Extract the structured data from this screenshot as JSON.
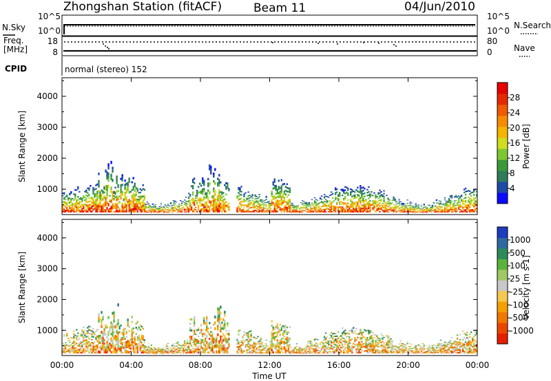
{
  "header": {
    "station": "Zhongshan Station (fitACF)",
    "beam": "Beam 11",
    "date": "04/Jun/2010"
  },
  "summary_panel": {
    "left_label": "N.Sky",
    "right_label": "N.Search",
    "left_ticks": [
      "10^5",
      "10^0"
    ],
    "right_ticks": [
      "10^5",
      "10^0"
    ]
  },
  "freq_panel": {
    "left_label_top": "Freq.",
    "left_label_unit": "[MHz]",
    "right_label": "Nave",
    "left_ticks": [
      "18",
      "8"
    ],
    "right_ticks": [
      "80",
      "0"
    ]
  },
  "cpid_panel": {
    "label": "CPID",
    "mode_text": "normal (stereo) 152"
  },
  "chart_data": [
    {
      "type": "heatmap",
      "name": "power",
      "ylabel": "Slant Range [km]",
      "ylim": [
        180,
        4600
      ],
      "yticks": [
        "1000",
        "2000",
        "3000",
        "4000"
      ],
      "colorbar": {
        "label": "Power [dB]",
        "ticks": [
          "4",
          "8",
          "12",
          "16",
          "20",
          "24",
          "28"
        ],
        "colors": [
          "#0a0aff",
          "#1f4aa8",
          "#2e7d5a",
          "#3a9a3a",
          "#7dc832",
          "#d2dc1e",
          "#f5b400",
          "#f58c00",
          "#f05a00",
          "#e62800",
          "#e60000"
        ]
      }
    },
    {
      "type": "heatmap",
      "name": "velocity",
      "ylabel": "Slant Range [km]",
      "ylim": [
        180,
        4600
      ],
      "yticks": [
        "1000",
        "2000",
        "3000",
        "4000"
      ],
      "xlabel": "Time UT",
      "xticks": [
        "00:00",
        "04:00",
        "08:00",
        "12:00",
        "16:00",
        "20:00",
        "00:00"
      ],
      "colorbar": {
        "label": "Velocity [m s-1]",
        "ticks": [
          "1000",
          "500",
          "100",
          "25",
          "-25",
          "-100",
          "-500",
          "-1000"
        ],
        "colors": [
          "#1e3cbe",
          "#2e6aa0",
          "#2e8a5a",
          "#5ab43c",
          "#a0c864",
          "#c8c8c8",
          "#f5c850",
          "#f5a000",
          "#f07800",
          "#eb4600",
          "#e61e00"
        ]
      }
    }
  ]
}
